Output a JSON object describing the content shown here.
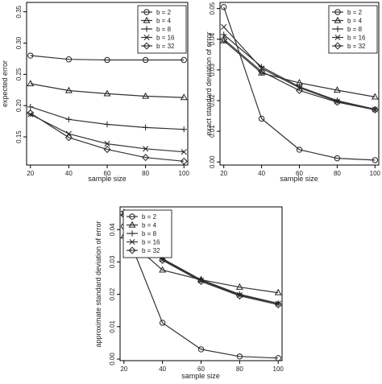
{
  "chart_data": [
    {
      "type": "line",
      "xlabel": "sample size",
      "ylabel": "expected error",
      "x": [
        20,
        40,
        60,
        80,
        100
      ],
      "xticks": [
        "20",
        "40",
        "60",
        "80",
        "100"
      ],
      "xlim": [
        18,
        102
      ],
      "ylim": [
        0.105,
        0.365
      ],
      "yticks": [
        "0.15",
        "0.20",
        "0.25",
        "0.30",
        "0.35"
      ],
      "ytick_values": [
        0.15,
        0.2,
        0.25,
        0.3,
        0.35
      ],
      "grid": false,
      "legend_position": "top-right",
      "series": [
        {
          "name": "b = 2",
          "marker": "circle",
          "values": [
            0.28,
            0.274,
            0.273,
            0.273,
            0.273
          ]
        },
        {
          "name": "b = 4",
          "marker": "triangle",
          "values": [
            0.235,
            0.224,
            0.219,
            0.215,
            0.213
          ]
        },
        {
          "name": "b = 8",
          "marker": "plus",
          "values": [
            0.198,
            0.178,
            0.17,
            0.165,
            0.162
          ]
        },
        {
          "name": "b = 16",
          "marker": "cross",
          "values": [
            0.186,
            0.155,
            0.139,
            0.131,
            0.126
          ]
        },
        {
          "name": "b = 32",
          "marker": "diamond",
          "values": [
            0.188,
            0.149,
            0.13,
            0.117,
            0.111
          ]
        }
      ]
    },
    {
      "type": "line",
      "xlabel": "sample size",
      "ylabel": "exact standard deviation of error",
      "x": [
        20,
        40,
        60,
        80,
        100
      ],
      "xticks": [
        "20",
        "40",
        "60",
        "80",
        "100"
      ],
      "xlim": [
        18,
        102
      ],
      "ylim": [
        -0.001,
        0.052
      ],
      "yticks": [
        "0.00",
        "0.01",
        "0.02",
        "0.03",
        "0.04",
        "0.05"
      ],
      "ytick_values": [
        0.0,
        0.01,
        0.02,
        0.03,
        0.04,
        0.05
      ],
      "grid": false,
      "legend_position": "top-right",
      "series": [
        {
          "name": "b = 2",
          "marker": "circle",
          "values": [
            0.0505,
            0.0141,
            0.004,
            0.0012,
            0.0006
          ]
        },
        {
          "name": "b = 4",
          "marker": "triangle",
          "values": [
            0.0395,
            0.029,
            0.0258,
            0.0234,
            0.0212
          ]
        },
        {
          "name": "b = 8",
          "marker": "plus",
          "values": [
            0.0415,
            0.031,
            0.0245,
            0.02,
            0.0172
          ]
        },
        {
          "name": "b = 16",
          "marker": "cross",
          "values": [
            0.044,
            0.0305,
            0.0242,
            0.0197,
            0.0171
          ]
        },
        {
          "name": "b = 32",
          "marker": "diamond",
          "values": [
            0.04,
            0.0295,
            0.0233,
            0.0195,
            0.017
          ]
        }
      ]
    },
    {
      "type": "line",
      "xlabel": "sample size",
      "ylabel": "approximate standard deviation of error",
      "x": [
        20,
        40,
        60,
        80,
        100
      ],
      "xticks": [
        "20",
        "40",
        "60",
        "80",
        "100"
      ],
      "xlim": [
        18,
        102
      ],
      "ylim": [
        -0.0005,
        0.047
      ],
      "yticks": [
        "0.00",
        "0.01",
        "0.02",
        "0.03",
        "0.04"
      ],
      "ytick_values": [
        0.0,
        0.01,
        0.02,
        0.03,
        0.04
      ],
      "grid": false,
      "legend_position": "top-left",
      "series": [
        {
          "name": "b = 2",
          "marker": "circle",
          "values": [
            0.041,
            0.0112,
            0.003,
            0.0008,
            0.0003
          ]
        },
        {
          "name": "b = 4",
          "marker": "triangle",
          "values": [
            0.038,
            0.0275,
            0.0245,
            0.0222,
            0.0205
          ]
        },
        {
          "name": "b = 8",
          "marker": "plus",
          "values": [
            0.0455,
            0.031,
            0.0245,
            0.02,
            0.0172
          ]
        },
        {
          "name": "b = 16",
          "marker": "cross",
          "values": [
            0.045,
            0.0308,
            0.0243,
            0.0198,
            0.0171
          ]
        },
        {
          "name": "b = 32",
          "marker": "diamond",
          "values": [
            0.0445,
            0.0305,
            0.024,
            0.0195,
            0.0168
          ]
        }
      ]
    }
  ]
}
